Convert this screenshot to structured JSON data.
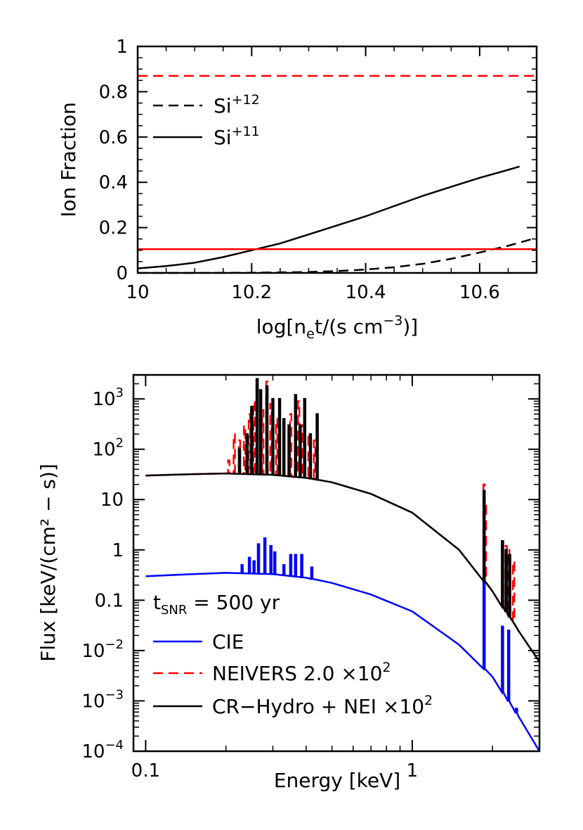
{
  "chart_data": [
    {
      "type": "line",
      "xlabel_main": "log[n",
      "xlabel_sub": "e",
      "xlabel_rest": "t/(s cm",
      "xlabel_sup": "−3",
      "xlabel_end": ")]",
      "ylabel": "Ion Fraction",
      "xlim": [
        10.0,
        10.7
      ],
      "ylim": [
        0,
        1
      ],
      "xticks": [
        10,
        10.2,
        10.4,
        10.6
      ],
      "xtick_labels": [
        "10",
        "10.2",
        "10.4",
        "10.6"
      ],
      "yticks": [
        0,
        0.2,
        0.4,
        0.6,
        0.8,
        1
      ],
      "ytick_labels": [
        "0",
        "0.2",
        "0.4",
        "0.6",
        "0.8",
        "1"
      ],
      "legend": [
        {
          "label_base": "Si",
          "label_sup": "+12",
          "style": "dashed",
          "color": "#000000"
        },
        {
          "label_base": "Si",
          "label_sup": "+11",
          "style": "solid",
          "color": "#000000"
        }
      ],
      "series": [
        {
          "name": "Si+11",
          "style": "solid",
          "color": "#000000",
          "x": [
            10.0,
            10.05,
            10.1,
            10.15,
            10.2,
            10.25,
            10.3,
            10.35,
            10.4,
            10.45,
            10.5,
            10.55,
            10.6,
            10.65,
            10.67
          ],
          "y": [
            0.02,
            0.03,
            0.045,
            0.07,
            0.1,
            0.13,
            0.17,
            0.21,
            0.25,
            0.295,
            0.34,
            0.38,
            0.42,
            0.455,
            0.47
          ]
        },
        {
          "name": "Si+12",
          "style": "dashed",
          "color": "#000000",
          "x": [
            10.0,
            10.1,
            10.2,
            10.3,
            10.35,
            10.4,
            10.45,
            10.5,
            10.55,
            10.6,
            10.65,
            10.7
          ],
          "y": [
            0.0,
            0.0,
            0.001,
            0.004,
            0.008,
            0.015,
            0.025,
            0.04,
            0.062,
            0.09,
            0.12,
            0.155
          ]
        },
        {
          "name": "",
          "style": "dashed",
          "color": "#ff0000",
          "x": [
            10.0,
            10.7
          ],
          "y": [
            0.87,
            0.87
          ]
        },
        {
          "name": "",
          "style": "solid",
          "color": "#ff0000",
          "x": [
            10.0,
            10.7
          ],
          "y": [
            0.105,
            0.105
          ]
        }
      ]
    },
    {
      "type": "line",
      "xlabel": "Energy [keV]",
      "ylabel": "Flux [keV/(cm² − s)]",
      "xscale": "log",
      "yscale": "log",
      "xlim": [
        0.09,
        3.0
      ],
      "ylim": [
        0.0001,
        3000
      ],
      "xticks": [
        0.1,
        1
      ],
      "xtick_labels": [
        "0.1",
        "1"
      ],
      "yticks": [
        0.0001,
        0.001,
        0.01,
        0.1,
        1,
        10,
        100,
        1000
      ],
      "ytick_labels": [
        {
          "base": "10",
          "sup": "−4"
        },
        {
          "base": "10",
          "sup": "−3"
        },
        {
          "base": "10",
          "sup": "−2"
        },
        {
          "base": "0.1",
          "sup": ""
        },
        {
          "base": "1",
          "sup": ""
        },
        {
          "base": "10",
          "sup": ""
        },
        {
          "base": "10",
          "sup": "2"
        },
        {
          "base": "10",
          "sup": "3"
        }
      ],
      "annotation_main": "t",
      "annotation_sub": "SNR",
      "annotation_rest": " = 500 yr",
      "legend": [
        {
          "label": "CIE",
          "label_sup": "",
          "style": "solid",
          "color": "#0000ff"
        },
        {
          "label": "NEIVERS 2.0 ×10",
          "label_sup": "2",
          "style": "dashed",
          "color": "#ff0000"
        },
        {
          "label": "CR−Hydro + NEI ×10",
          "label_sup": "2",
          "style": "solid",
          "color": "#000000"
        }
      ],
      "series": [
        {
          "name": "CIE",
          "style": "solid",
          "color": "#0000ff",
          "continuum": {
            "x": [
              0.1,
              0.15,
              0.2,
              0.3,
              0.4,
              0.5,
              0.7,
              1.0,
              1.5,
              2.0,
              2.5,
              3.0
            ],
            "y": [
              0.3,
              0.33,
              0.35,
              0.33,
              0.28,
              0.22,
              0.13,
              0.06,
              0.013,
              0.003,
              0.0005,
              0.0001
            ]
          },
          "lines": [
            {
              "x": 0.23,
              "y": 0.5
            },
            {
              "x": 0.245,
              "y": 0.7
            },
            {
              "x": 0.255,
              "y": 0.6
            },
            {
              "x": 0.265,
              "y": 1.3
            },
            {
              "x": 0.28,
              "y": 1.7
            },
            {
              "x": 0.295,
              "y": 1.2
            },
            {
              "x": 0.305,
              "y": 0.9
            },
            {
              "x": 0.33,
              "y": 0.5
            },
            {
              "x": 0.35,
              "y": 0.8
            },
            {
              "x": 0.365,
              "y": 0.8
            },
            {
              "x": 0.385,
              "y": 0.8
            },
            {
              "x": 0.42,
              "y": 0.45
            },
            {
              "x": 1.86,
              "y": 0.25
            },
            {
              "x": 2.18,
              "y": 0.03
            },
            {
              "x": 2.3,
              "y": 0.025
            },
            {
              "x": 2.46,
              "y": 0.0007
            }
          ]
        },
        {
          "name": "NEIVERS 2.0 ×10²",
          "style": "dashed",
          "color": "#ff0000",
          "continuum": {
            "x": [
              0.1,
              0.15,
              0.2,
              0.3,
              0.4,
              0.5,
              0.7,
              1.0,
              1.5,
              2.0,
              2.5,
              3.0
            ],
            "y": [
              30,
              32,
              33,
              31,
              27,
              22,
              13,
              5.5,
              1.0,
              0.15,
              0.025,
              0.006
            ]
          },
          "lines": [
            {
              "x": 0.205,
              "y": 60
            },
            {
              "x": 0.215,
              "y": 200
            },
            {
              "x": 0.225,
              "y": 150
            },
            {
              "x": 0.235,
              "y": 300
            },
            {
              "x": 0.245,
              "y": 500
            },
            {
              "x": 0.255,
              "y": 900
            },
            {
              "x": 0.262,
              "y": 2000
            },
            {
              "x": 0.275,
              "y": 600
            },
            {
              "x": 0.285,
              "y": 2200
            },
            {
              "x": 0.295,
              "y": 800
            },
            {
              "x": 0.31,
              "y": 400
            },
            {
              "x": 0.33,
              "y": 300
            },
            {
              "x": 0.35,
              "y": 500
            },
            {
              "x": 0.375,
              "y": 900
            },
            {
              "x": 0.39,
              "y": 300
            },
            {
              "x": 0.41,
              "y": 200
            },
            {
              "x": 0.43,
              "y": 150
            },
            {
              "x": 1.86,
              "y": 20
            },
            {
              "x": 1.88,
              "y": 8
            },
            {
              "x": 2.18,
              "y": 1.5
            },
            {
              "x": 2.25,
              "y": 1.2
            },
            {
              "x": 2.3,
              "y": 1.0
            },
            {
              "x": 2.4,
              "y": 0.6
            }
          ]
        },
        {
          "name": "CR−Hydro + NEI ×10²",
          "style": "solid",
          "color": "#000000",
          "continuum": {
            "x": [
              0.1,
              0.15,
              0.2,
              0.3,
              0.4,
              0.5,
              0.7,
              1.0,
              1.5,
              2.0,
              2.5,
              3.0
            ],
            "y": [
              30,
              32,
              33,
              31,
              27,
              22,
              13,
              5.5,
              1.0,
              0.15,
              0.025,
              0.006
            ]
          },
          "lines": [
            {
              "x": 0.225,
              "y": 100
            },
            {
              "x": 0.24,
              "y": 200
            },
            {
              "x": 0.25,
              "y": 700
            },
            {
              "x": 0.262,
              "y": 2500
            },
            {
              "x": 0.27,
              "y": 1500
            },
            {
              "x": 0.285,
              "y": 1800
            },
            {
              "x": 0.3,
              "y": 1000
            },
            {
              "x": 0.318,
              "y": 1000
            },
            {
              "x": 0.33,
              "y": 400
            },
            {
              "x": 0.345,
              "y": 300
            },
            {
              "x": 0.365,
              "y": 1200
            },
            {
              "x": 0.38,
              "y": 300
            },
            {
              "x": 0.395,
              "y": 1000
            },
            {
              "x": 0.415,
              "y": 200
            },
            {
              "x": 0.44,
              "y": 500
            },
            {
              "x": 1.86,
              "y": 15
            },
            {
              "x": 2.18,
              "y": 1.5
            },
            {
              "x": 2.25,
              "y": 1.0
            },
            {
              "x": 2.32,
              "y": 0.8
            }
          ]
        }
      ]
    }
  ]
}
